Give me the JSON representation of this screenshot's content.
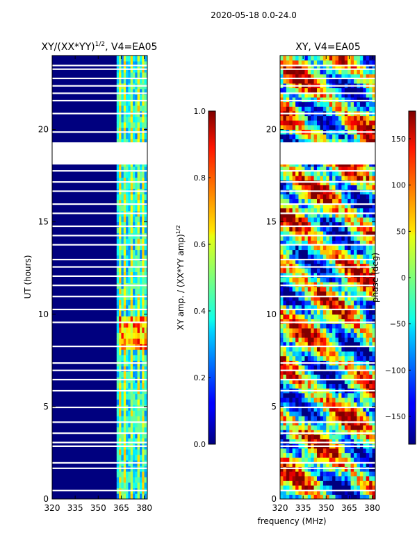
{
  "suptitle": "2020-05-18 0.0-24.0",
  "colors": {
    "background": "#ffffff",
    "frame": "#000000",
    "plot_bg": "#00007f"
  },
  "chart_data": [
    {
      "type": "heatmap",
      "title": "XY/(XX*YY)",
      "title_sup": "1/2",
      "title_suffix": ", V4=EA05",
      "xlabel": "",
      "ylabel": "UT (hours)",
      "xlim": [
        320,
        382
      ],
      "ylim": [
        0,
        24
      ],
      "x_ticks": [
        320,
        335,
        350,
        365,
        380
      ],
      "y_ticks": [
        0,
        5,
        10,
        15,
        20
      ],
      "colormap": "jet",
      "colorbar": {
        "label": "XY amp. / (XX*YY amp)",
        "label_sup": "1/2",
        "range": [
          0.0,
          1.0
        ],
        "ticks": [
          0.0,
          0.2,
          0.4,
          0.6,
          0.8,
          1.0
        ],
        "tick_labels": [
          "0.0",
          "0.2",
          "0.4",
          "0.6",
          "0.8",
          "1.0"
        ]
      },
      "flagged_ut_ranges": [
        [
          18.1,
          19.3
        ]
      ],
      "high_value_region": {
        "x": [
          363,
          382
        ],
        "y": [
          7.8,
          9.8
        ],
        "value": 0.9
      }
    },
    {
      "type": "heatmap",
      "title": "XY, V4=EA05",
      "xlabel": "frequency (MHz)",
      "ylabel": "",
      "xlim": [
        320,
        382
      ],
      "ylim": [
        0,
        24
      ],
      "x_ticks": [
        320,
        335,
        350,
        365,
        380
      ],
      "y_ticks": [
        0,
        5,
        10,
        15,
        20
      ],
      "colormap": "jet",
      "colorbar": {
        "label": "phase (deg)",
        "range": [
          -180,
          180
        ],
        "ticks": [
          -150,
          -100,
          -50,
          0,
          50,
          100,
          150
        ],
        "tick_labels": [
          "−150",
          "−100",
          "−50",
          "0",
          "50",
          "100",
          "150"
        ]
      },
      "flagged_ut_ranges": [
        [
          18.1,
          19.3
        ]
      ]
    }
  ]
}
